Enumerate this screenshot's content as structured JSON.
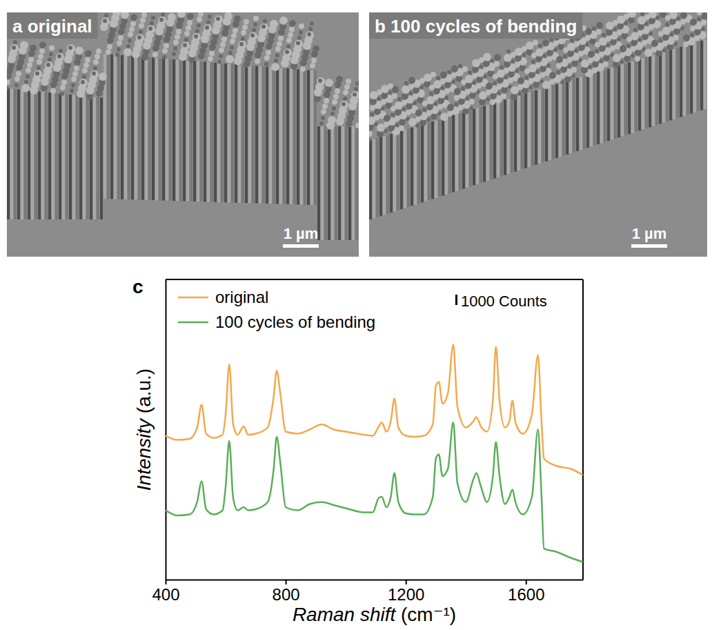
{
  "panels": [
    {
      "label": "a original",
      "scale_bar": "1 µm"
    },
    {
      "label": "b 100 cycles of bending",
      "scale_bar": "1 µm"
    }
  ],
  "chart_data": {
    "type": "line",
    "panel_label": "c",
    "x_label": "Raman shift (cm⁻¹)",
    "y_label": "Intensity (a.u.)",
    "xlim": [
      400,
      1790
    ],
    "xticks": [
      400,
      800,
      1200,
      1600
    ],
    "ylim": [
      0,
      29000
    ],
    "yticks": [],
    "tick_labels": "x",
    "legend": "upper left",
    "scale_bar": {
      "value": 1000,
      "label": "1000 Counts"
    },
    "x": [
      400,
      440,
      480,
      505,
      520,
      535,
      560,
      590,
      600,
      612,
      625,
      640,
      660,
      675,
      700,
      740,
      760,
      770,
      782,
      800,
      840,
      880,
      920,
      960,
      1000,
      1060,
      1090,
      1110,
      1120,
      1135,
      1150,
      1162,
      1175,
      1200,
      1230,
      1260,
      1290,
      1300,
      1310,
      1322,
      1340,
      1358,
      1372,
      1400,
      1425,
      1435,
      1450,
      1470,
      1490,
      1500,
      1512,
      1530,
      1545,
      1555,
      1565,
      1590,
      1620,
      1640,
      1652,
      1660,
      1700,
      1750,
      1790
    ],
    "series": [
      {
        "name": "original",
        "color": "#f4a84c",
        "values": [
          13900,
          13500,
          13600,
          14700,
          16900,
          14100,
          13700,
          14000,
          16000,
          20800,
          15000,
          14000,
          14800,
          14000,
          14100,
          14700,
          17700,
          20200,
          18000,
          14300,
          14100,
          14500,
          15000,
          14500,
          14300,
          14000,
          13900,
          14800,
          15200,
          14300,
          15300,
          17500,
          14700,
          13900,
          13800,
          13900,
          15000,
          18700,
          19100,
          17000,
          18000,
          22700,
          16700,
          14700,
          15300,
          15700,
          14800,
          14300,
          17300,
          22500,
          17300,
          14700,
          15300,
          17300,
          15200,
          14100,
          16000,
          21700,
          15300,
          11700,
          11000,
          10700,
          10100
        ]
      },
      {
        "name": "100 cycles of bending",
        "color": "#5aae5a",
        "values": [
          6700,
          6200,
          6300,
          7500,
          9500,
          6800,
          6300,
          6700,
          9000,
          13400,
          7900,
          6700,
          7000,
          6700,
          6800,
          7500,
          10700,
          13800,
          11300,
          7000,
          6700,
          7300,
          7500,
          7200,
          6900,
          6500,
          6500,
          7900,
          8000,
          7000,
          8000,
          10300,
          7500,
          6400,
          6300,
          6300,
          8000,
          11700,
          12100,
          10000,
          10700,
          15200,
          9300,
          7500,
          9700,
          10300,
          9000,
          7500,
          10000,
          13300,
          10000,
          7300,
          8000,
          8700,
          7500,
          6300,
          8000,
          14500,
          8000,
          3000,
          2700,
          2100,
          1700
        ]
      }
    ]
  }
}
